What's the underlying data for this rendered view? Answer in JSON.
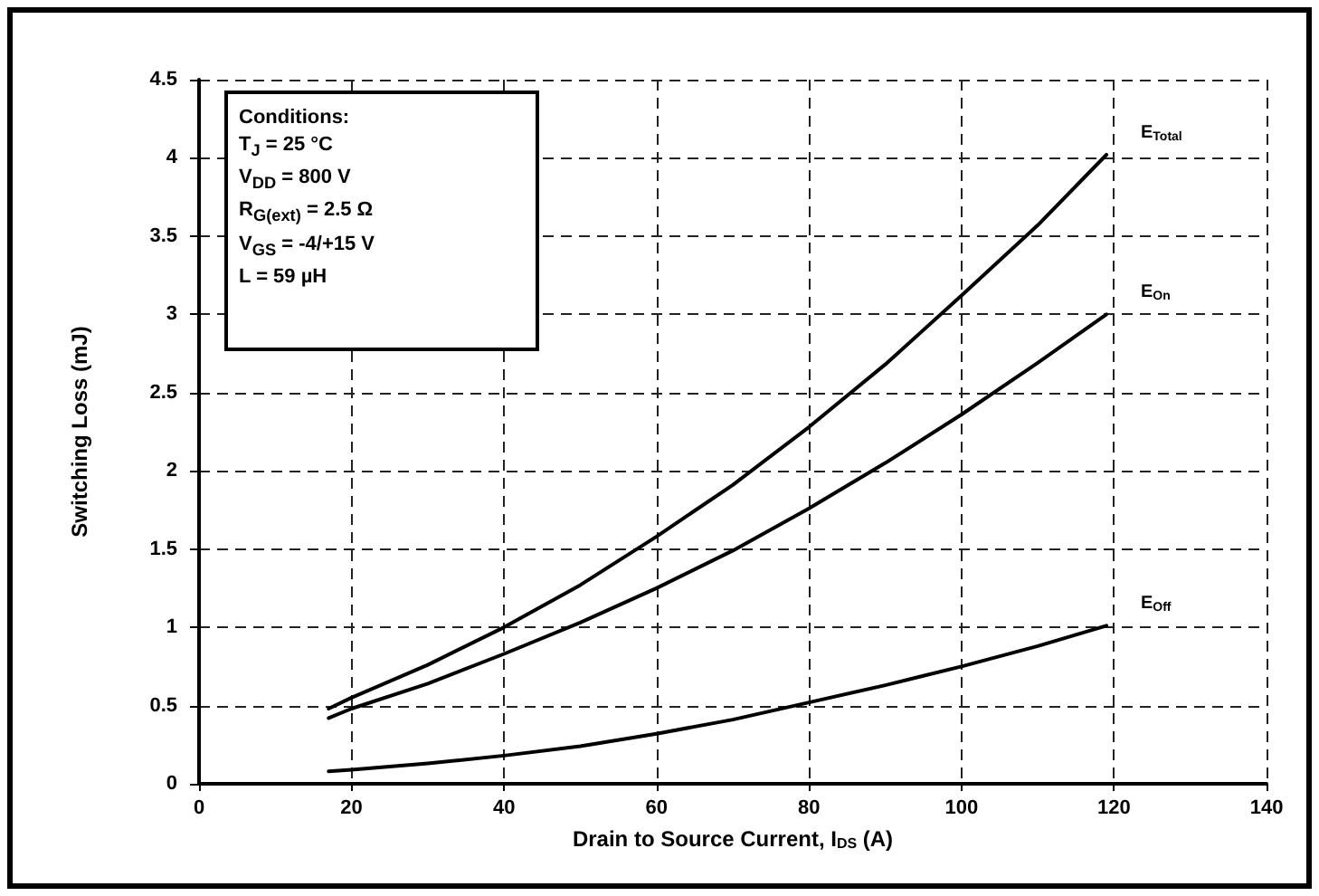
{
  "chart_data": {
    "type": "line",
    "xlabel": "Drain to Source Current, I$_{DS}$ (A)",
    "ylabel": "Switching Loss (mJ)",
    "annotations": [
      "Conditions:",
      "T$_{J}$ = 25 °C",
      "V$_{DD}$ = 800 V",
      "R$_{G(ext)}$ = 2.5 Ω",
      "V$_{GS}$ = -4/+15 V",
      "L = 59 µH"
    ],
    "series": [
      {
        "name": "E$_{Total}$",
        "color": "#000000",
        "x": [
          17,
          20,
          30,
          40,
          50,
          60,
          70,
          80,
          90,
          100,
          110,
          119
        ],
        "values": [
          0.48,
          0.55,
          0.76,
          1.0,
          1.27,
          1.58,
          1.91,
          2.28,
          2.68,
          3.12,
          3.57,
          4.02
        ]
      },
      {
        "name": "E$_{On}$",
        "color": "#000000",
        "x": [
          17,
          20,
          30,
          40,
          50,
          60,
          70,
          80,
          90,
          100,
          110,
          119
        ],
        "values": [
          0.42,
          0.48,
          0.64,
          0.83,
          1.03,
          1.25,
          1.49,
          1.76,
          2.05,
          2.36,
          2.69,
          3.0
        ]
      },
      {
        "name": "E$_{Off}$",
        "color": "#000000",
        "x": [
          17,
          20,
          30,
          40,
          50,
          60,
          70,
          80,
          90,
          100,
          110,
          119
        ],
        "values": [
          0.08,
          0.09,
          0.13,
          0.18,
          0.24,
          0.32,
          0.41,
          0.52,
          0.63,
          0.75,
          0.88,
          1.01
        ]
      }
    ],
    "xlim": [
      0,
      140
    ],
    "xticks": [
      0,
      20,
      40,
      60,
      80,
      100,
      120,
      140
    ],
    "ylim": [
      0,
      4.5
    ],
    "yticks": [
      0,
      0.5,
      1,
      1.5,
      2,
      2.5,
      3,
      3.5,
      4,
      4.5
    ],
    "grid": true,
    "legend": false,
    "marker": "none",
    "line_style": "solid"
  }
}
